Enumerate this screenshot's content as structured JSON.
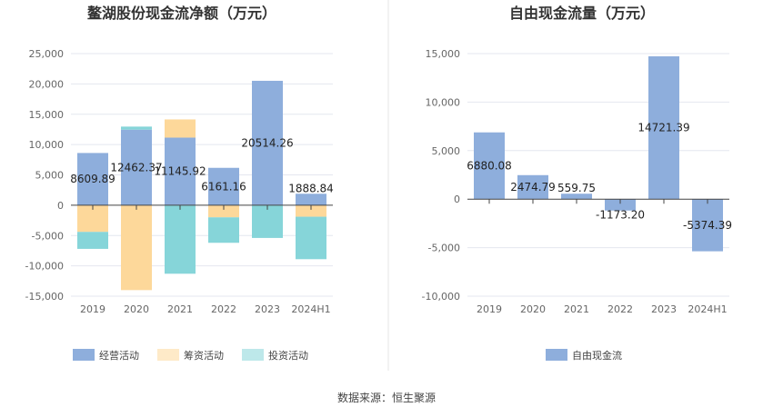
{
  "source": "数据来源：恒生聚源",
  "chart_data": [
    {
      "type": "bar",
      "stacked": true,
      "title": "鳌湖股份现金流净额（万元）",
      "categories": [
        "2019",
        "2020",
        "2021",
        "2022",
        "2023",
        "2024H1"
      ],
      "ylim": [
        -15000,
        25000
      ],
      "yticks": [
        25000,
        20000,
        15000,
        10000,
        5000,
        0,
        -5000,
        -10000,
        -15000
      ],
      "ytick_labels": [
        "25,000",
        "20,000",
        "15,000",
        "10,000",
        "5,000",
        "0",
        "-5,000",
        "-10,000",
        "-15,000"
      ],
      "grid": true,
      "legend_position": "bottom-left",
      "series": [
        {
          "name": "经营活动",
          "color": "#8eaedc",
          "values": [
            8609.89,
            12462.37,
            11145.92,
            6161.16,
            20514.26,
            1888.84
          ]
        },
        {
          "name": "筹资活动",
          "color": "#fdd89a",
          "values": [
            -4400,
            -14000,
            3000,
            -2000,
            0,
            -1900
          ]
        },
        {
          "name": "投资活动",
          "color": "#86d5d9",
          "values": [
            -2800,
            500,
            -11300,
            -4200,
            -5400,
            -7000
          ]
        }
      ],
      "data_labels": [
        "8609.89",
        "12462.37",
        "11145.92",
        "6161.16",
        "20514.26",
        "1888.84"
      ]
    },
    {
      "type": "bar",
      "title": "自由现金流量（万元）",
      "categories": [
        "2019",
        "2020",
        "2021",
        "2022",
        "2023",
        "2024H1"
      ],
      "ylim": [
        -10000,
        15000
      ],
      "yticks": [
        15000,
        10000,
        5000,
        0,
        -5000,
        -10000
      ],
      "ytick_labels": [
        "15,000",
        "10,000",
        "5,000",
        "0",
        "-5,000",
        "-10,000"
      ],
      "grid": true,
      "legend_position": "bottom-center",
      "series": [
        {
          "name": "自由现金流",
          "color": "#8eaedc",
          "values": [
            6880.08,
            2474.79,
            559.75,
            -1173.2,
            14721.39,
            -5374.39
          ]
        }
      ],
      "data_labels": [
        "6880.08",
        "2474.79",
        "559.75",
        "-1173.20",
        "14721.39",
        "-5374.39"
      ]
    }
  ]
}
